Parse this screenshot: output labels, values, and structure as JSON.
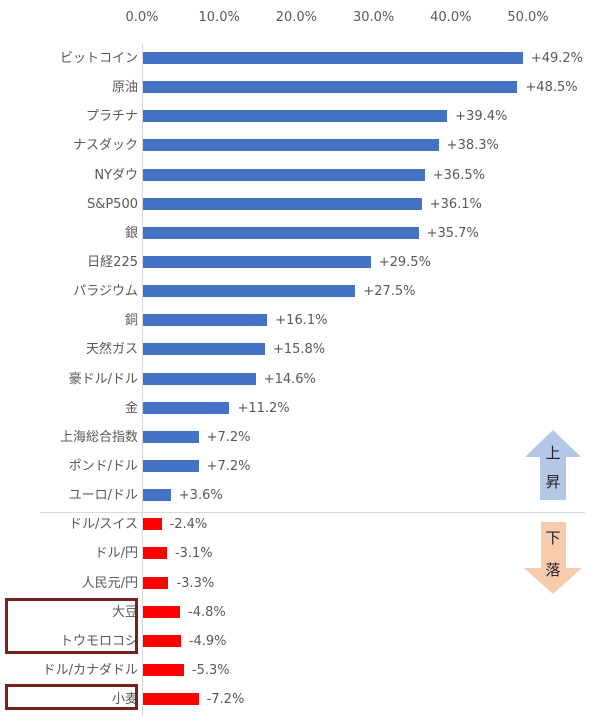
{
  "chart_data": {
    "type": "bar",
    "orientation": "horizontal",
    "title": "",
    "xlabel": "",
    "ylabel": "",
    "x_ticks": [
      "0.0%",
      "10.0%",
      "20.0%",
      "30.0%",
      "40.0%",
      "50.0%"
    ],
    "xlim": [
      0,
      50
    ],
    "grid": false,
    "categories": [
      "ビットコイン",
      "原油",
      "プラチナ",
      "ナスダック",
      "NYダウ",
      "S&P500",
      "銀",
      "日経225",
      "パラジウム",
      "銅",
      "天然ガス",
      "豪ドル/ドル",
      "金",
      "上海総合指数",
      "ポンド/ドル",
      "ユーロ/ドル",
      "ドル/スイス",
      "ドル/円",
      "人民元/円",
      "大豆",
      "トウモロコシ",
      "ドル/カナダドル",
      "小麦"
    ],
    "values": [
      49.2,
      48.5,
      39.4,
      38.3,
      36.5,
      36.1,
      35.7,
      29.5,
      27.5,
      16.1,
      15.8,
      14.6,
      11.2,
      7.2,
      7.2,
      3.6,
      -2.4,
      -3.1,
      -3.3,
      -4.8,
      -4.9,
      -5.3,
      -7.2
    ],
    "value_labels": [
      "+49.2%",
      "+48.5%",
      "+39.4%",
      "+38.3%",
      "+36.5%",
      "+36.1%",
      "+35.7%",
      "+29.5%",
      "+27.5%",
      "+16.1%",
      "+15.8%",
      "+14.6%",
      "+11.2%",
      "+7.2%",
      "+7.2%",
      "+3.6%",
      "-2.4%",
      "-3.1%",
      "-3.3%",
      "-4.8%",
      "-4.9%",
      "-5.3%",
      "-7.2%"
    ],
    "colors": {
      "positive": "#4472c4",
      "negative": "#ff0000"
    },
    "highlighted": [
      "大豆",
      "トウモロコシ",
      "小麦"
    ],
    "annotations": {
      "up_arrow": {
        "text": [
          "上",
          "昇"
        ],
        "color": "#b4c7e7"
      },
      "down_arrow": {
        "text": [
          "下",
          "落"
        ],
        "color": "#f8cbad"
      },
      "highlight_box_color": "#7b1e1e"
    }
  }
}
